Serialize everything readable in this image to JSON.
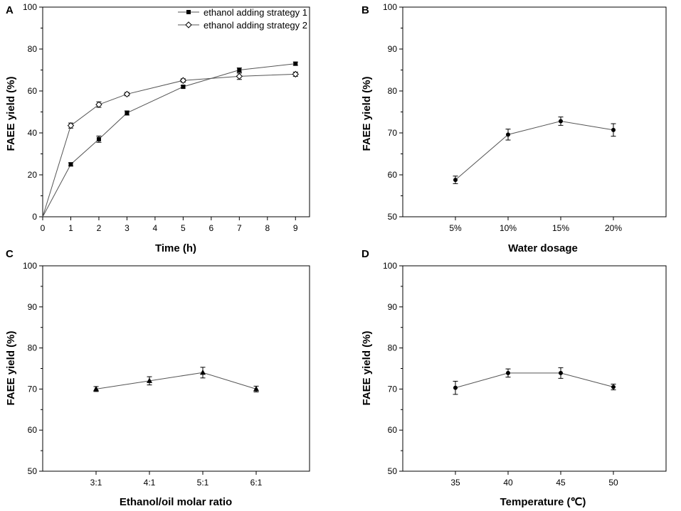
{
  "chart_data": [
    {
      "panel": "A",
      "type": "line",
      "xlabel": "Time (h)",
      "ylabel": "FAEE yield (%)",
      "xlim": [
        0,
        9.5
      ],
      "ylim": [
        0,
        100
      ],
      "x_ticks": [
        "0",
        "1",
        "2",
        "3",
        "4",
        "5",
        "6",
        "7",
        "8",
        "9"
      ],
      "y_ticks": [
        "0",
        "20",
        "40",
        "60",
        "80",
        "100"
      ],
      "legend_position": "top-right",
      "series": [
        {
          "name": "ethanol adding strategy 1",
          "marker": "filled-square",
          "x": [
            0,
            1,
            2,
            3,
            5,
            7,
            9
          ],
          "values": [
            0,
            25,
            37,
            49.5,
            62,
            70,
            73
          ],
          "errors": [
            0,
            0.8,
            1.5,
            1.0,
            0.6,
            1.0,
            0.8
          ]
        },
        {
          "name": "ethanol adding strategy 2",
          "marker": "open-diamond",
          "x": [
            0,
            1,
            2,
            3,
            5,
            7,
            9
          ],
          "values": [
            0,
            43.5,
            53.5,
            58.5,
            65,
            67,
            68
          ],
          "errors": [
            0,
            1.2,
            1.3,
            0.8,
            0.8,
            1.5,
            1.0
          ]
        }
      ]
    },
    {
      "panel": "B",
      "type": "line",
      "xlabel": "Water dosage",
      "ylabel": "FAEE yield (%)",
      "ylim": [
        50,
        100
      ],
      "categories": [
        "5%",
        "10%",
        "15%",
        "20%"
      ],
      "y_ticks": [
        "50",
        "60",
        "70",
        "80",
        "90",
        "100"
      ],
      "series": [
        {
          "name": "FAEE yield",
          "marker": "filled-circle",
          "values": [
            58.8,
            69.6,
            72.8,
            70.7
          ],
          "errors": [
            0.9,
            1.3,
            1.0,
            1.5
          ]
        }
      ]
    },
    {
      "panel": "C",
      "type": "line",
      "xlabel": "Ethanol/oil molar ratio",
      "ylabel": "FAEE yield (%)",
      "ylim": [
        50,
        100
      ],
      "categories": [
        "3:1",
        "4:1",
        "5:1",
        "6:1"
      ],
      "y_ticks": [
        "50",
        "60",
        "70",
        "80",
        "90",
        "100"
      ],
      "series": [
        {
          "name": "FAEE yield",
          "marker": "filled-triangle",
          "values": [
            70,
            72,
            74,
            70
          ],
          "errors": [
            0.6,
            1.0,
            1.3,
            0.7
          ]
        }
      ]
    },
    {
      "panel": "D",
      "type": "line",
      "xlabel": "Temperature (℃)",
      "ylabel": "FAEE yield (%)",
      "ylim": [
        50,
        100
      ],
      "categories": [
        "35",
        "40",
        "45",
        "50"
      ],
      "y_ticks": [
        "50",
        "60",
        "70",
        "80",
        "90",
        "100"
      ],
      "series": [
        {
          "name": "FAEE yield",
          "marker": "filled-circle",
          "values": [
            70.3,
            73.9,
            73.9,
            70.5
          ],
          "errors": [
            1.6,
            1.0,
            1.3,
            0.7
          ]
        }
      ]
    }
  ],
  "colors": {
    "line": "#555555",
    "marker": "#000000",
    "axis": "#000000"
  }
}
